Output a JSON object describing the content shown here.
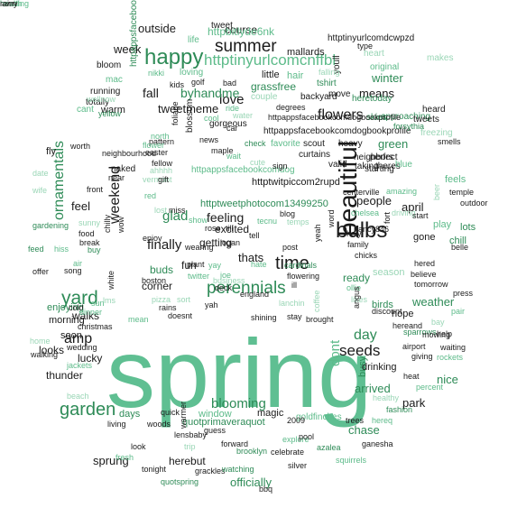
{
  "palette": {
    "dark": "#1a1a1a",
    "mid": "#555555",
    "green": "#2e8b57",
    "lightgreen": "#5dbb8a",
    "pale": "#9ad6b6",
    "big": "#5fbf92"
  },
  "words": [
    {
      "text": "spring",
      "tone": "big"
    },
    {
      "text": "beautiful",
      "tone": "dark"
    },
    {
      "text": "happy",
      "tone": "green"
    },
    {
      "text": "summer",
      "tone": "dark"
    },
    {
      "text": "httptinyurlcomcnffbl",
      "tone": "lightgreen"
    },
    {
      "text": "bulbs",
      "tone": "dark"
    },
    {
      "text": "perennials",
      "tone": "green"
    },
    {
      "text": "time",
      "tone": "dark"
    },
    {
      "text": "ornamentals",
      "tone": "green"
    },
    {
      "text": "yard",
      "tone": "green"
    },
    {
      "text": "garden",
      "tone": "green"
    },
    {
      "text": "weekend",
      "tone": "dark"
    },
    {
      "text": "flowers",
      "tone": "dark"
    },
    {
      "text": "seeds",
      "tone": "dark"
    },
    {
      "text": "blooming",
      "tone": "green"
    },
    {
      "text": "love",
      "tone": "dark"
    },
    {
      "text": "glad",
      "tone": "green"
    },
    {
      "text": "finally",
      "tone": "dark"
    },
    {
      "text": "amp",
      "tone": "dark"
    },
    {
      "text": "day",
      "tone": "green"
    },
    {
      "text": "dont",
      "tone": "lightgreen"
    },
    {
      "text": "fall",
      "tone": "dark"
    },
    {
      "text": "byhandme",
      "tone": "green"
    },
    {
      "text": "tweetmeme",
      "tone": "dark"
    },
    {
      "text": "feeling",
      "tone": "dark"
    },
    {
      "text": "means",
      "tone": "dark"
    },
    {
      "text": "winter",
      "tone": "green"
    },
    {
      "text": "green",
      "tone": "green"
    },
    {
      "text": "people",
      "tone": "dark"
    },
    {
      "text": "april",
      "tone": "dark"
    },
    {
      "text": "officially",
      "tone": "green"
    },
    {
      "text": "weather",
      "tone": "green"
    },
    {
      "text": "park",
      "tone": "dark"
    },
    {
      "text": "chase",
      "tone": "green"
    },
    {
      "text": "arrived",
      "tone": "green"
    },
    {
      "text": "nice",
      "tone": "green"
    },
    {
      "text": "week",
      "tone": "dark"
    },
    {
      "text": "outside",
      "tone": "dark"
    },
    {
      "text": "course",
      "tone": "dark"
    },
    {
      "text": "httpbitlyde6nk",
      "tone": "lightgreen"
    },
    {
      "text": "httptinyurlcomdcwpzd",
      "tone": "dark"
    },
    {
      "text": "mallards",
      "tone": "dark"
    },
    {
      "text": "thunder",
      "tone": "dark"
    },
    {
      "text": "feel",
      "tone": "dark"
    },
    {
      "text": "fun",
      "tone": "dark"
    },
    {
      "text": "getting",
      "tone": "dark"
    },
    {
      "text": "excited",
      "tone": "dark"
    },
    {
      "text": "thats",
      "tone": "dark"
    },
    {
      "text": "walks",
      "tone": "dark"
    },
    {
      "text": "looks",
      "tone": "dark"
    },
    {
      "text": "lucky",
      "tone": "dark"
    },
    {
      "text": "soon",
      "tone": "dark"
    },
    {
      "text": "morning",
      "tone": "dark"
    },
    {
      "text": "enjoying",
      "tone": "green"
    },
    {
      "text": "buds",
      "tone": "green"
    },
    {
      "text": "corner",
      "tone": "dark"
    },
    {
      "text": "sprung",
      "tone": "dark"
    },
    {
      "text": "days",
      "tone": "green"
    },
    {
      "text": "window",
      "tone": "lightgreen"
    },
    {
      "text": "magic",
      "tone": "dark"
    },
    {
      "text": "herebut",
      "tone": "dark"
    },
    {
      "text": "hope",
      "tone": "dark"
    },
    {
      "text": "birds",
      "tone": "green"
    },
    {
      "text": "ready",
      "tone": "green"
    },
    {
      "text": "season",
      "tone": "pale"
    },
    {
      "text": "chill",
      "tone": "green"
    },
    {
      "text": "lots",
      "tone": "green"
    },
    {
      "text": "feels",
      "tone": "lightgreen"
    },
    {
      "text": "gone",
      "tone": "dark"
    },
    {
      "text": "play",
      "tone": "lightgreen"
    },
    {
      "text": "busy",
      "tone": "green"
    },
    {
      "text": "drinking",
      "tone": "dark"
    },
    {
      "text": "httpappsfacebookcomdogbookprofile",
      "tone": "dark"
    },
    {
      "text": "grassfree",
      "tone": "green"
    },
    {
      "text": "little",
      "tone": "dark"
    },
    {
      "text": "hair",
      "tone": "lightgreen"
    },
    {
      "text": "httptwitpiccom2rupd",
      "tone": "dark"
    },
    {
      "text": "httptweetphotocom13499250",
      "tone": "green"
    },
    {
      "text": "httpappsfacebookcomdog",
      "tone": "lightgreen"
    },
    {
      "text": "httpappsfacebookcomdogbookprofileview5750581",
      "tone": "green"
    },
    {
      "text": "quotprimaveraquot",
      "tone": "green"
    },
    {
      "text": "goldfinches",
      "tone": "lightgreen"
    },
    {
      "text": "bloom",
      "tone": "dark"
    },
    {
      "text": "mac",
      "tone": "lightgreen"
    },
    {
      "text": "nikki",
      "tone": "lightgreen"
    },
    {
      "text": "loving",
      "tone": "lightgreen"
    },
    {
      "text": "life",
      "tone": "lightgreen"
    },
    {
      "text": "tweet",
      "tone": "dark"
    },
    {
      "text": "running",
      "tone": "dark"
    },
    {
      "text": "totally",
      "tone": "dark"
    },
    {
      "text": "warm",
      "tone": "dark"
    },
    {
      "text": "cant",
      "tone": "lightgreen"
    },
    {
      "text": "wellnow",
      "tone": "pale"
    },
    {
      "text": "yellow",
      "tone": "green"
    },
    {
      "text": "kids",
      "tone": "dark"
    },
    {
      "text": "golf",
      "tone": "dark"
    },
    {
      "text": "bad",
      "tone": "dark"
    },
    {
      "text": "ride",
      "tone": "lightgreen"
    },
    {
      "text": "cool",
      "tone": "lightgreen"
    },
    {
      "text": "water",
      "tone": "pale"
    },
    {
      "text": "couple",
      "tone": "pale"
    },
    {
      "text": "backyard",
      "tone": "dark"
    },
    {
      "text": "move",
      "tone": "dark"
    },
    {
      "text": "youll",
      "tone": "dark"
    },
    {
      "text": "tshirt",
      "tone": "green"
    },
    {
      "text": "falling",
      "tone": "pale"
    },
    {
      "text": "heretoday",
      "tone": "green"
    },
    {
      "text": "original",
      "tone": "lightgreen"
    },
    {
      "text": "perfect",
      "tone": "dark"
    },
    {
      "text": "approaching",
      "tone": "green"
    },
    {
      "text": "forsythia",
      "tone": "green"
    },
    {
      "text": "heard",
      "tone": "dark"
    },
    {
      "text": "tweets",
      "tone": "dark"
    },
    {
      "text": "skies",
      "tone": "green"
    },
    {
      "text": "freezing",
      "tone": "pale"
    },
    {
      "text": "smells",
      "tone": "dark"
    },
    {
      "text": "heart",
      "tone": "pale"
    },
    {
      "text": "type",
      "tone": "dark"
    },
    {
      "text": "makes",
      "tone": "pale"
    },
    {
      "text": "easter",
      "tone": "dark"
    },
    {
      "text": "pattern",
      "tone": "dark"
    },
    {
      "text": "foliage",
      "tone": "dark"
    },
    {
      "text": "north",
      "tone": "lightgreen"
    },
    {
      "text": "news",
      "tone": "dark"
    },
    {
      "text": "maple",
      "tone": "dark"
    },
    {
      "text": "gorgeous",
      "tone": "dark"
    },
    {
      "text": "car",
      "tone": "dark"
    },
    {
      "text": "httpappsfacebookcomdogbookprofile",
      "tone": "dark"
    },
    {
      "text": "degrees",
      "tone": "dark"
    },
    {
      "text": "favorite",
      "tone": "lightgreen"
    },
    {
      "text": "scout",
      "tone": "dark"
    },
    {
      "text": "heavy",
      "tone": "dark"
    },
    {
      "text": "curtains",
      "tone": "dark"
    },
    {
      "text": "neighbors",
      "tone": "dark"
    },
    {
      "text": "valid",
      "tone": "dark"
    },
    {
      "text": "taking",
      "tone": "dark"
    },
    {
      "text": "starting",
      "tone": "dark"
    },
    {
      "text": "theres",
      "tone": "dark"
    },
    {
      "text": "blue",
      "tone": "lightgreen"
    },
    {
      "text": "fly",
      "tone": "dark"
    },
    {
      "text": "neighbourhood",
      "tone": "dark"
    },
    {
      "text": "worth",
      "tone": "dark"
    },
    {
      "text": "flower",
      "tone": "lightgreen"
    },
    {
      "text": "ahhhh",
      "tone": "pale"
    },
    {
      "text": "fellow",
      "tone": "dark"
    },
    {
      "text": "naked",
      "tone": "dark"
    },
    {
      "text": "blossom",
      "tone": "dark"
    },
    {
      "text": "check",
      "tone": "green"
    },
    {
      "text": "wait",
      "tone": "lightgreen"
    },
    {
      "text": "cute",
      "tone": "pale"
    },
    {
      "text": "sign",
      "tone": "dark"
    },
    {
      "text": "centerville",
      "tone": "dark"
    },
    {
      "text": "amazing",
      "tone": "lightgreen"
    },
    {
      "text": "temple",
      "tone": "dark"
    },
    {
      "text": "outdoor",
      "tone": "dark"
    },
    {
      "text": "wife",
      "tone": "pale"
    },
    {
      "text": "date",
      "tone": "pale"
    },
    {
      "text": "front",
      "tone": "dark"
    },
    {
      "text": "vermont",
      "tone": "pale"
    },
    {
      "text": "gift",
      "tone": "dark"
    },
    {
      "text": "red",
      "tone": "lightgreen"
    },
    {
      "text": "lost",
      "tone": "pale"
    },
    {
      "text": "miss",
      "tone": "dark"
    },
    {
      "text": "near",
      "tone": "dark"
    },
    {
      "text": "show",
      "tone": "lightgreen"
    },
    {
      "text": "rose",
      "tone": "dark"
    },
    {
      "text": "till",
      "tone": "dark"
    },
    {
      "text": "tecnu",
      "tone": "lightgreen"
    },
    {
      "text": "blog",
      "tone": "dark"
    },
    {
      "text": "temps",
      "tone": "pale"
    },
    {
      "text": "chelsea",
      "tone": "lightgreen"
    },
    {
      "text": "driving",
      "tone": "pale"
    },
    {
      "text": "start",
      "tone": "dark"
    },
    {
      "text": "beer",
      "tone": "pale"
    },
    {
      "text": "gardening",
      "tone": "green"
    },
    {
      "text": "sunny",
      "tone": "pale"
    },
    {
      "text": "food",
      "tone": "dark"
    },
    {
      "text": "feed",
      "tone": "green"
    },
    {
      "text": "hiss",
      "tone": "lightgreen"
    },
    {
      "text": "break",
      "tone": "dark"
    },
    {
      "text": "offer",
      "tone": "dark"
    },
    {
      "text": "song",
      "tone": "dark"
    },
    {
      "text": "discount",
      "tone": "dark"
    },
    {
      "text": "enjoy",
      "tone": "dark"
    },
    {
      "text": "wearing",
      "tone": "dark"
    },
    {
      "text": "plant",
      "tone": "dark"
    },
    {
      "text": "hate",
      "tone": "lightgreen"
    },
    {
      "text": "tell",
      "tone": "dark"
    },
    {
      "text": "post",
      "tone": "dark"
    },
    {
      "text": "family",
      "tone": "dark"
    },
    {
      "text": "chicks",
      "tone": "dark"
    },
    {
      "text": "hered",
      "tone": "dark"
    },
    {
      "text": "believe",
      "tone": "dark"
    },
    {
      "text": "tomorrow",
      "tone": "dark"
    },
    {
      "text": "press",
      "tone": "dark"
    },
    {
      "text": "pair",
      "tone": "lightgreen"
    },
    {
      "text": "belle",
      "tone": "dark"
    },
    {
      "text": "buy",
      "tone": "green"
    },
    {
      "text": "air",
      "tone": "lightgreen"
    },
    {
      "text": "wow",
      "tone": "dark"
    },
    {
      "text": "chilly",
      "tone": "dark"
    },
    {
      "text": "logan",
      "tone": "dark"
    },
    {
      "text": "twitter",
      "tone": "lightgreen"
    },
    {
      "text": "yay",
      "tone": "lightgreen"
    },
    {
      "text": "joe",
      "tone": "lightgreen"
    },
    {
      "text": "business",
      "tone": "pale"
    },
    {
      "text": "deck",
      "tone": "dark"
    },
    {
      "text": "ill",
      "tone": "dark"
    },
    {
      "text": "yeah",
      "tone": "dark"
    },
    {
      "text": "word",
      "tone": "dark"
    },
    {
      "text": "holy",
      "tone": "dark"
    },
    {
      "text": "nancy846",
      "tone": "dark"
    },
    {
      "text": "fort",
      "tone": "dark"
    },
    {
      "text": "ollie",
      "tone": "lightgreen"
    },
    {
      "text": "likes",
      "tone": "pale"
    },
    {
      "text": "cold",
      "tone": "dark"
    },
    {
      "text": "sun",
      "tone": "lightgreen"
    },
    {
      "text": "dinner",
      "tone": "lightgreen"
    },
    {
      "text": "white",
      "tone": "dark"
    },
    {
      "text": "boston",
      "tone": "dark"
    },
    {
      "text": "sort",
      "tone": "pale"
    },
    {
      "text": "pizza",
      "tone": "pale"
    },
    {
      "text": "rains",
      "tone": "dark"
    },
    {
      "text": "yah",
      "tone": "dark"
    },
    {
      "text": "england",
      "tone": "dark"
    },
    {
      "text": "lanchin",
      "tone": "pale"
    },
    {
      "text": "stay",
      "tone": "dark"
    },
    {
      "text": "coffee",
      "tone": "pale"
    },
    {
      "text": "angus",
      "tone": "dark"
    },
    {
      "text": "sparrows",
      "tone": "green"
    },
    {
      "text": "help",
      "tone": "dark"
    },
    {
      "text": "lms",
      "tone": "pale"
    },
    {
      "text": "christmas",
      "tone": "dark"
    },
    {
      "text": "mean",
      "tone": "lightgreen"
    },
    {
      "text": "doesnt",
      "tone": "dark"
    },
    {
      "text": "shining",
      "tone": "dark"
    },
    {
      "text": "brought",
      "tone": "dark"
    },
    {
      "text": "hereand",
      "tone": "dark"
    },
    {
      "text": "bay",
      "tone": "pale"
    },
    {
      "text": "mowing",
      "tone": "dark"
    },
    {
      "text": "home",
      "tone": "pale"
    },
    {
      "text": "wedding",
      "tone": "dark"
    },
    {
      "text": "airport",
      "tone": "dark"
    },
    {
      "text": "waiting",
      "tone": "dark"
    },
    {
      "text": "walking",
      "tone": "dark"
    },
    {
      "text": "giving",
      "tone": "dark"
    },
    {
      "text": "rockets",
      "tone": "lightgreen"
    },
    {
      "text": "jackets",
      "tone": "lightgreen"
    },
    {
      "text": "heat",
      "tone": "dark"
    },
    {
      "text": "percent",
      "tone": "lightgreen"
    },
    {
      "text": "beach",
      "tone": "pale"
    },
    {
      "text": "healthy",
      "tone": "pale"
    },
    {
      "text": "fashion",
      "tone": "green"
    },
    {
      "text": "quick",
      "tone": "dark"
    },
    {
      "text": "2009",
      "tone": "dark"
    },
    {
      "text": "trees",
      "tone": "dark"
    },
    {
      "text": "hereq",
      "tone": "lightgreen"
    },
    {
      "text": "living",
      "tone": "dark"
    },
    {
      "text": "woods",
      "tone": "dark"
    },
    {
      "text": "guess",
      "tone": "dark"
    },
    {
      "text": "explore",
      "tone": "lightgreen"
    },
    {
      "text": "warmer",
      "tone": "dark"
    },
    {
      "text": "lensbaby",
      "tone": "dark"
    },
    {
      "text": "pool",
      "tone": "dark"
    },
    {
      "text": "ganesha",
      "tone": "dark"
    },
    {
      "text": "fresh",
      "tone": "lightgreen"
    },
    {
      "text": "look",
      "tone": "dark"
    },
    {
      "text": "trip",
      "tone": "pale"
    },
    {
      "text": "forward",
      "tone": "dark"
    },
    {
      "text": "brooklyn",
      "tone": "green"
    },
    {
      "text": "celebrate",
      "tone": "dark"
    },
    {
      "text": "azalea",
      "tone": "green"
    },
    {
      "text": "squirrels",
      "tone": "lightgreen"
    },
    {
      "text": "tonight",
      "tone": "dark"
    },
    {
      "text": "grackles",
      "tone": "dark"
    },
    {
      "text": "watching",
      "tone": "green"
    },
    {
      "text": "silver",
      "tone": "dark"
    },
    {
      "text": "quotspring",
      "tone": "green"
    },
    {
      "text": "bbq",
      "tone": "dark"
    },
    {
      "text": "cardinals",
      "tone": "green"
    },
    {
      "text": "flowering",
      "tone": "dark"
    },
    {
      "text": "heading",
      "tone": "lightgreen"
    },
    {
      "text": "lawn",
      "tone": "dark"
    },
    {
      "text": "health",
      "tone": "lightgreen"
    },
    {
      "text": "rainy",
      "tone": "dark"
    }
  ]
}
